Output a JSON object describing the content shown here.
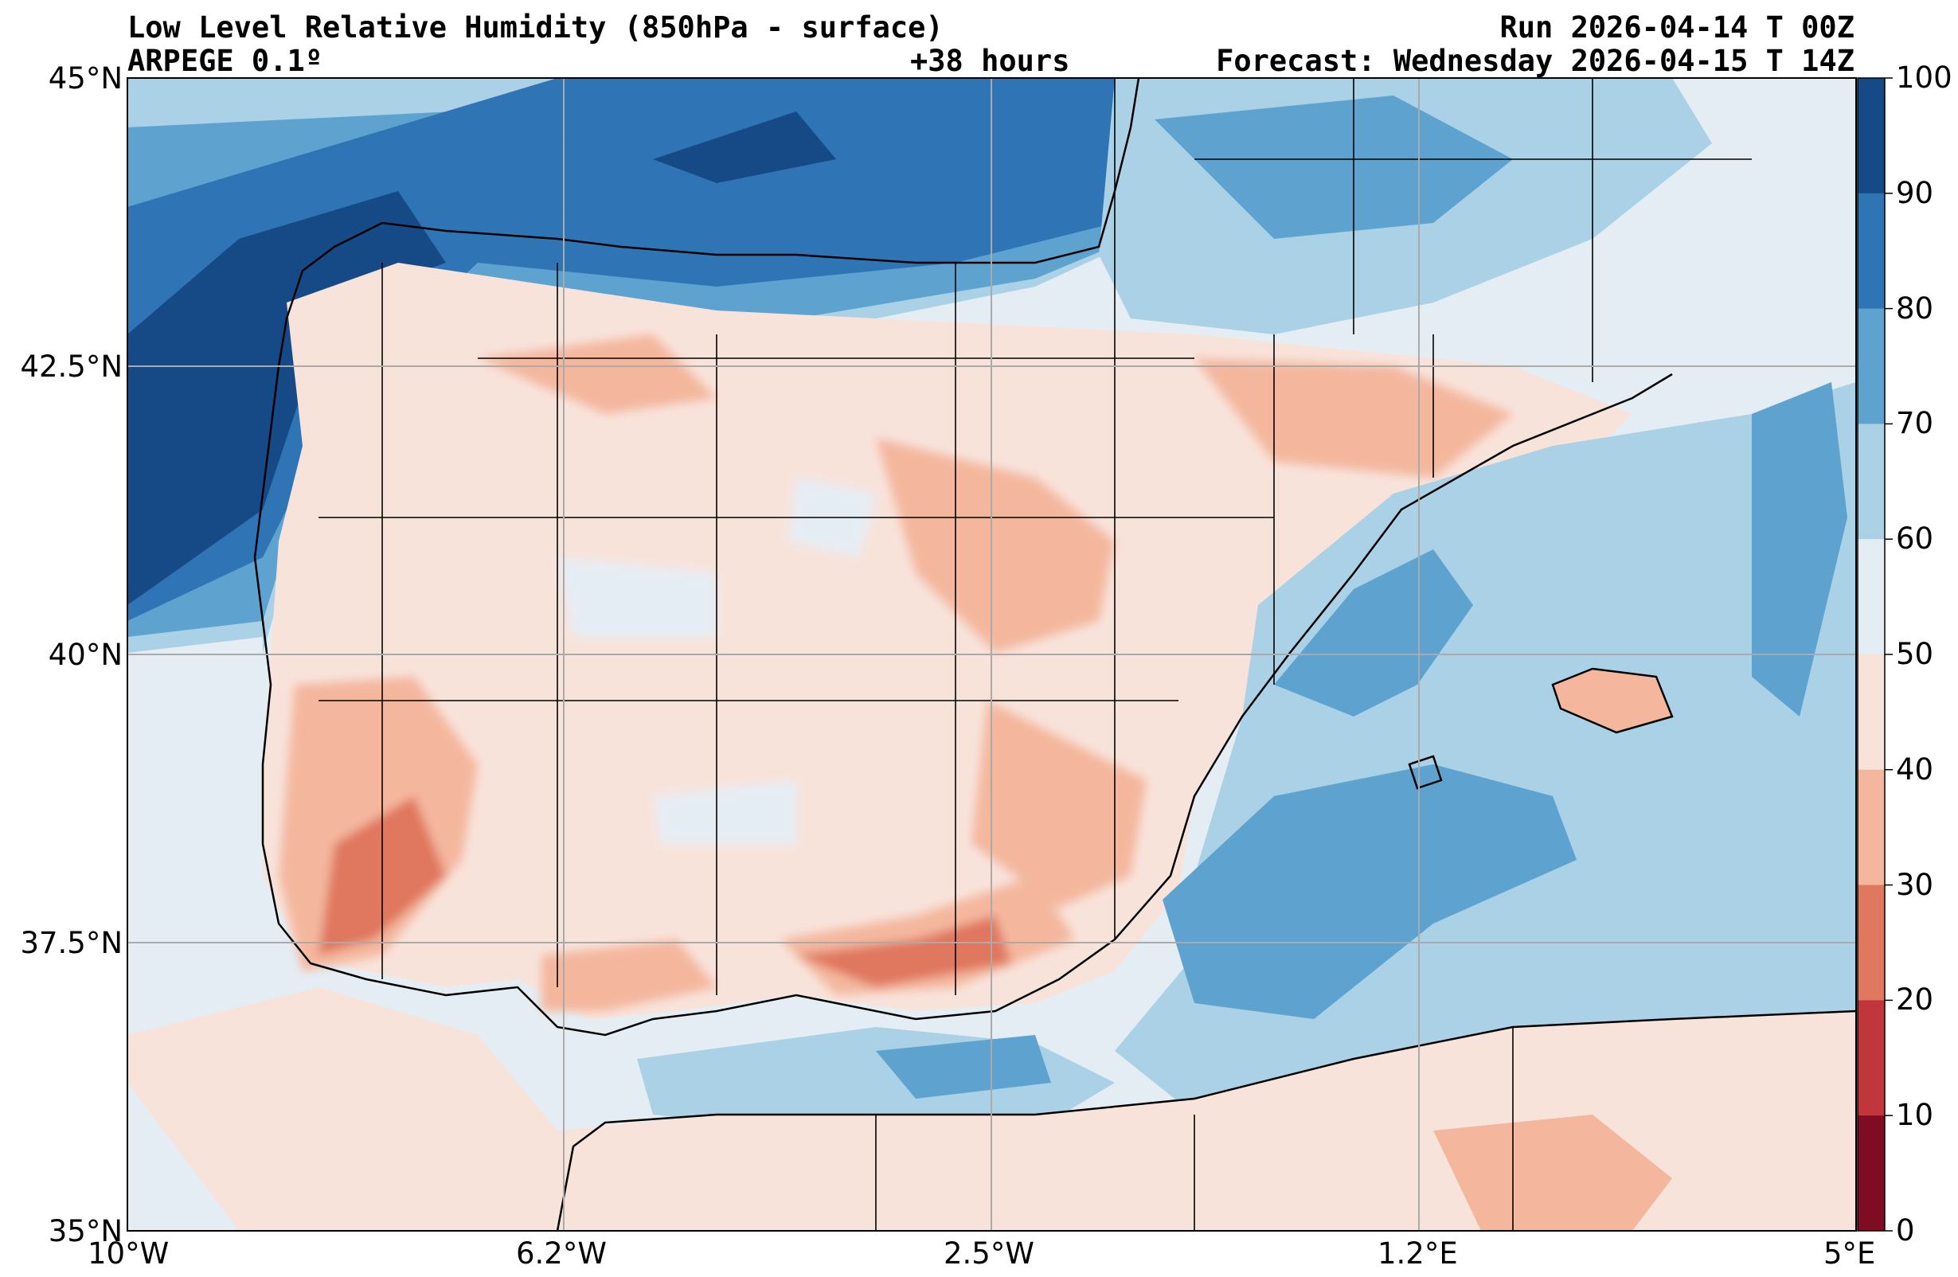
{
  "header": {
    "title": "Low Level Relative Humidity (850hPa - surface)",
    "model": "ARPEGE 0.1º",
    "lead_time": "+38 hours",
    "run": "Run 2026-04-14 T 00Z",
    "forecast": "Forecast: Wednesday 2026-04-15 T 14Z"
  },
  "map": {
    "lat_labels": [
      "45°N",
      "42.5°N",
      "40°N",
      "37.5°N",
      "35°N"
    ],
    "lon_labels": [
      "10°W",
      "6.2°W",
      "2.5°W",
      "1.2°E",
      "5°E"
    ]
  },
  "colorbar": {
    "labels": [
      "100",
      "90",
      "80",
      "70",
      "60",
      "50",
      "40",
      "30",
      "20",
      "10",
      "0"
    ],
    "colors_top_to_bottom": [
      "#154a86",
      "#2f74b5",
      "#5ea3cf",
      "#aad1e5",
      "#e5edf4",
      "#f8e3db",
      "#f4b79e",
      "#e0775f",
      "#c0363a",
      "#800c24"
    ]
  },
  "chart_data": {
    "type": "heatmap",
    "title": "Low Level Relative Humidity (850hPa - surface)",
    "units": "%",
    "levels": [
      0,
      10,
      20,
      30,
      40,
      50,
      60,
      70,
      80,
      90,
      100
    ],
    "lat_range": [
      35,
      45
    ],
    "lon_range": [
      -10,
      5
    ]
  }
}
